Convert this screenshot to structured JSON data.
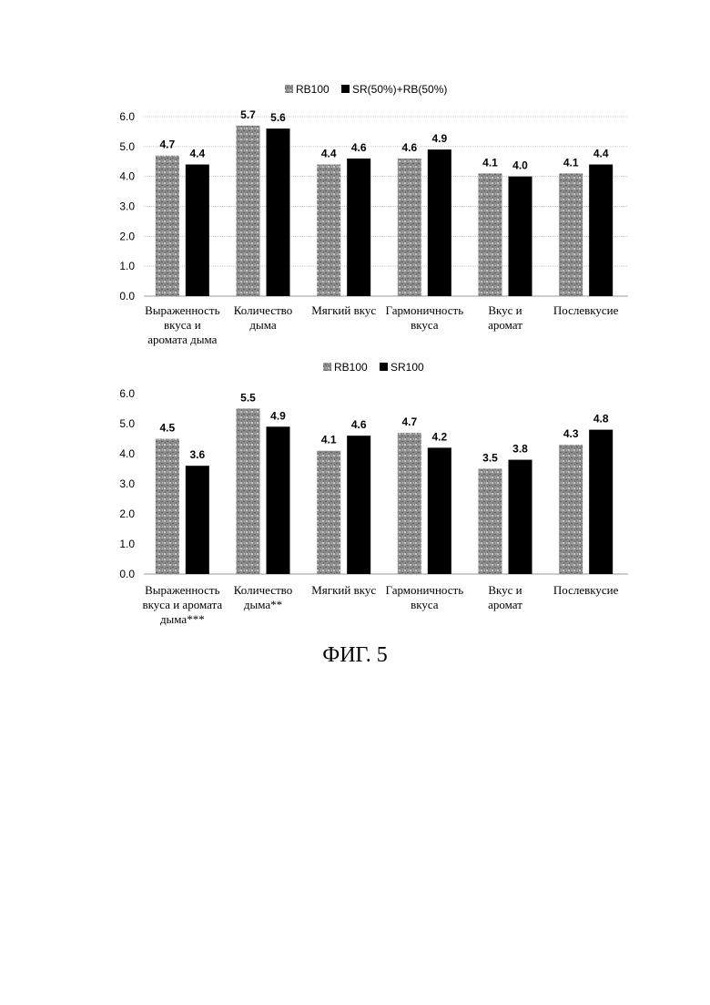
{
  "figure_caption": "ФИГ. 5",
  "colors": {
    "series_a": "#8c8c8c",
    "series_b": "#000000",
    "grid": "#c8c8c8"
  },
  "chart_data": [
    {
      "type": "bar",
      "legend_position": "top-center",
      "grid": true,
      "ylim": [
        0,
        6
      ],
      "yticks": [
        "0.0",
        "1.0",
        "2.0",
        "3.0",
        "4.0",
        "5.0",
        "6.0"
      ],
      "categories": [
        [
          "Выраженность",
          "вкуса и",
          "аромата дыма"
        ],
        [
          "Количество",
          "дыма"
        ],
        [
          "Мягкий вкус"
        ],
        [
          "Гармоничность",
          "вкуса"
        ],
        [
          "Вкус и",
          "аромат"
        ],
        [
          "Послевкусие"
        ]
      ],
      "series": [
        {
          "name": "RB100",
          "values": [
            4.7,
            5.7,
            4.4,
            4.6,
            4.1,
            4.1
          ],
          "labels": [
            "4.7",
            "5.7",
            "4.4",
            "4.6",
            "4.1",
            "4.1"
          ]
        },
        {
          "name": "SR(50%)+RB(50%)",
          "values": [
            4.4,
            5.6,
            4.6,
            4.9,
            4.0,
            4.4
          ],
          "labels": [
            "4.4",
            "5.6",
            "4.6",
            "4.9",
            "4.0",
            "4.4"
          ]
        }
      ]
    },
    {
      "type": "bar",
      "legend_position": "top-center",
      "grid": false,
      "ylim": [
        0,
        6
      ],
      "yticks": [
        "0.0",
        "1.0",
        "2.0",
        "3.0",
        "4.0",
        "5.0",
        "6.0"
      ],
      "categories": [
        [
          "Выраженность",
          "вкуса и аромата",
          "дыма***"
        ],
        [
          "Количество",
          "дыма**"
        ],
        [
          "Мягкий вкус"
        ],
        [
          "Гармоничность",
          "вкуса"
        ],
        [
          "Вкус и",
          "аромат"
        ],
        [
          "Послевкусие"
        ]
      ],
      "series": [
        {
          "name": "RB100",
          "values": [
            4.5,
            5.5,
            4.1,
            4.7,
            3.5,
            4.3
          ],
          "labels": [
            "4.5",
            "5.5",
            "4.1",
            "4.7",
            "3.5",
            "4.3"
          ]
        },
        {
          "name": "SR100",
          "values": [
            3.6,
            4.9,
            4.6,
            4.2,
            3.8,
            4.8
          ],
          "labels": [
            "3.6",
            "4.9",
            "4.6",
            "4.2",
            "3.8",
            "4.8"
          ]
        }
      ]
    }
  ]
}
